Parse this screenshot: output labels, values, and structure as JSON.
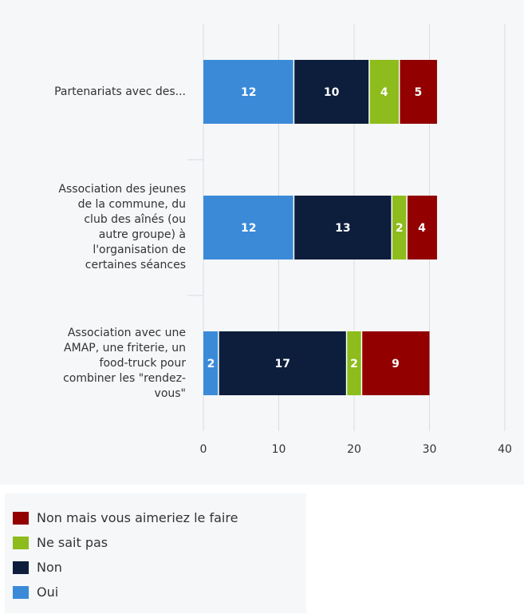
{
  "chart_data": {
    "type": "bar",
    "orientation": "horizontal",
    "stacked": true,
    "categories": [
      "Partenariats avec des...",
      "Association des jeunes de la commune, du club des aînés (ou autre groupe) à l'organisation de certaines séances",
      "Association avec une AMAP, une friterie, un food-truck pour combiner les \"rendez-vous\""
    ],
    "category_lines": [
      [
        "Partenariats avec des..."
      ],
      [
        "Association des jeunes",
        "de la commune, du",
        "club des aînés (ou",
        "autre groupe) à",
        "l'organisation de",
        "certaines séances"
      ],
      [
        "Association avec une",
        "AMAP, une friterie, un",
        "food-truck pour",
        "combiner les \"rendez-",
        "vous\""
      ]
    ],
    "series": [
      {
        "name": "Oui",
        "color": "#3b8ad8",
        "values": [
          12,
          12,
          2
        ]
      },
      {
        "name": "Non",
        "color": "#0c1e3b",
        "values": [
          10,
          13,
          17
        ]
      },
      {
        "name": "Ne sait pas",
        "color": "#8dbc1c",
        "values": [
          4,
          2,
          2
        ]
      },
      {
        "name": "Non mais vous aimeriez le faire",
        "color": "#920000",
        "values": [
          5,
          4,
          9
        ]
      }
    ],
    "legend_order": [
      "Non mais vous aimeriez le faire",
      "Ne sait pas",
      "Non",
      "Oui"
    ],
    "xlim": [
      0,
      40
    ],
    "xticks": [
      0,
      10,
      20,
      30,
      40
    ],
    "grid": true,
    "legend_position": "bottom-left",
    "data_labels": true
  }
}
